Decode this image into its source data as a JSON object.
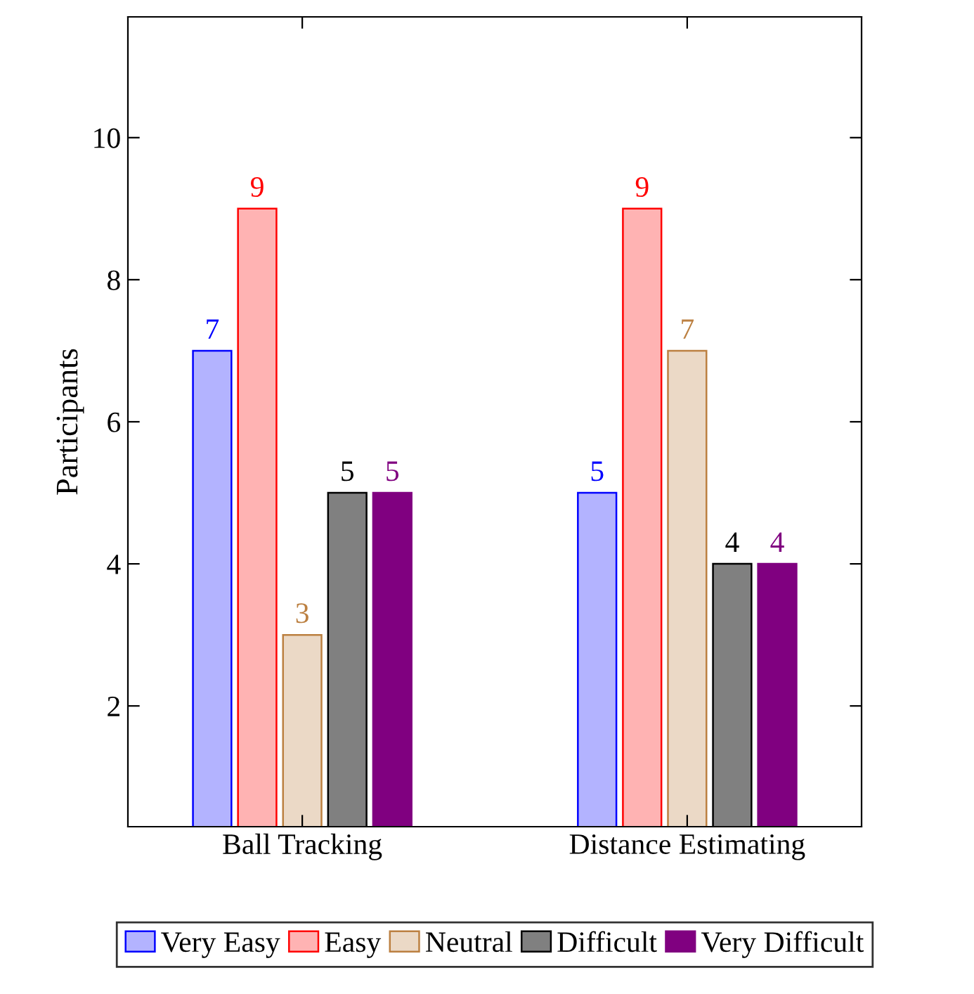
{
  "chart_data": {
    "type": "bar",
    "ylabel": "Participants",
    "categories": [
      "Ball Tracking",
      "Distance Estimating"
    ],
    "series": [
      {
        "name": "Very Easy",
        "color": "#b3b3ff",
        "values": [
          7,
          5
        ]
      },
      {
        "name": "Easy",
        "color": "#ffb3b3",
        "values": [
          9,
          9
        ]
      },
      {
        "name": "Neutral",
        "color": "#ebd9c6",
        "values": [
          3,
          7
        ]
      },
      {
        "name": "Difficult",
        "color": "#808080",
        "values": [
          5,
          4
        ]
      },
      {
        "name": "Very Difficult",
        "color": "#800080",
        "values": [
          5,
          4
        ]
      }
    ],
    "ylim": [
      0.3,
      11.7
    ],
    "yticks": [
      2,
      4,
      6,
      8,
      10
    ],
    "data_labels": true,
    "grid": false,
    "legend": "bottom"
  }
}
